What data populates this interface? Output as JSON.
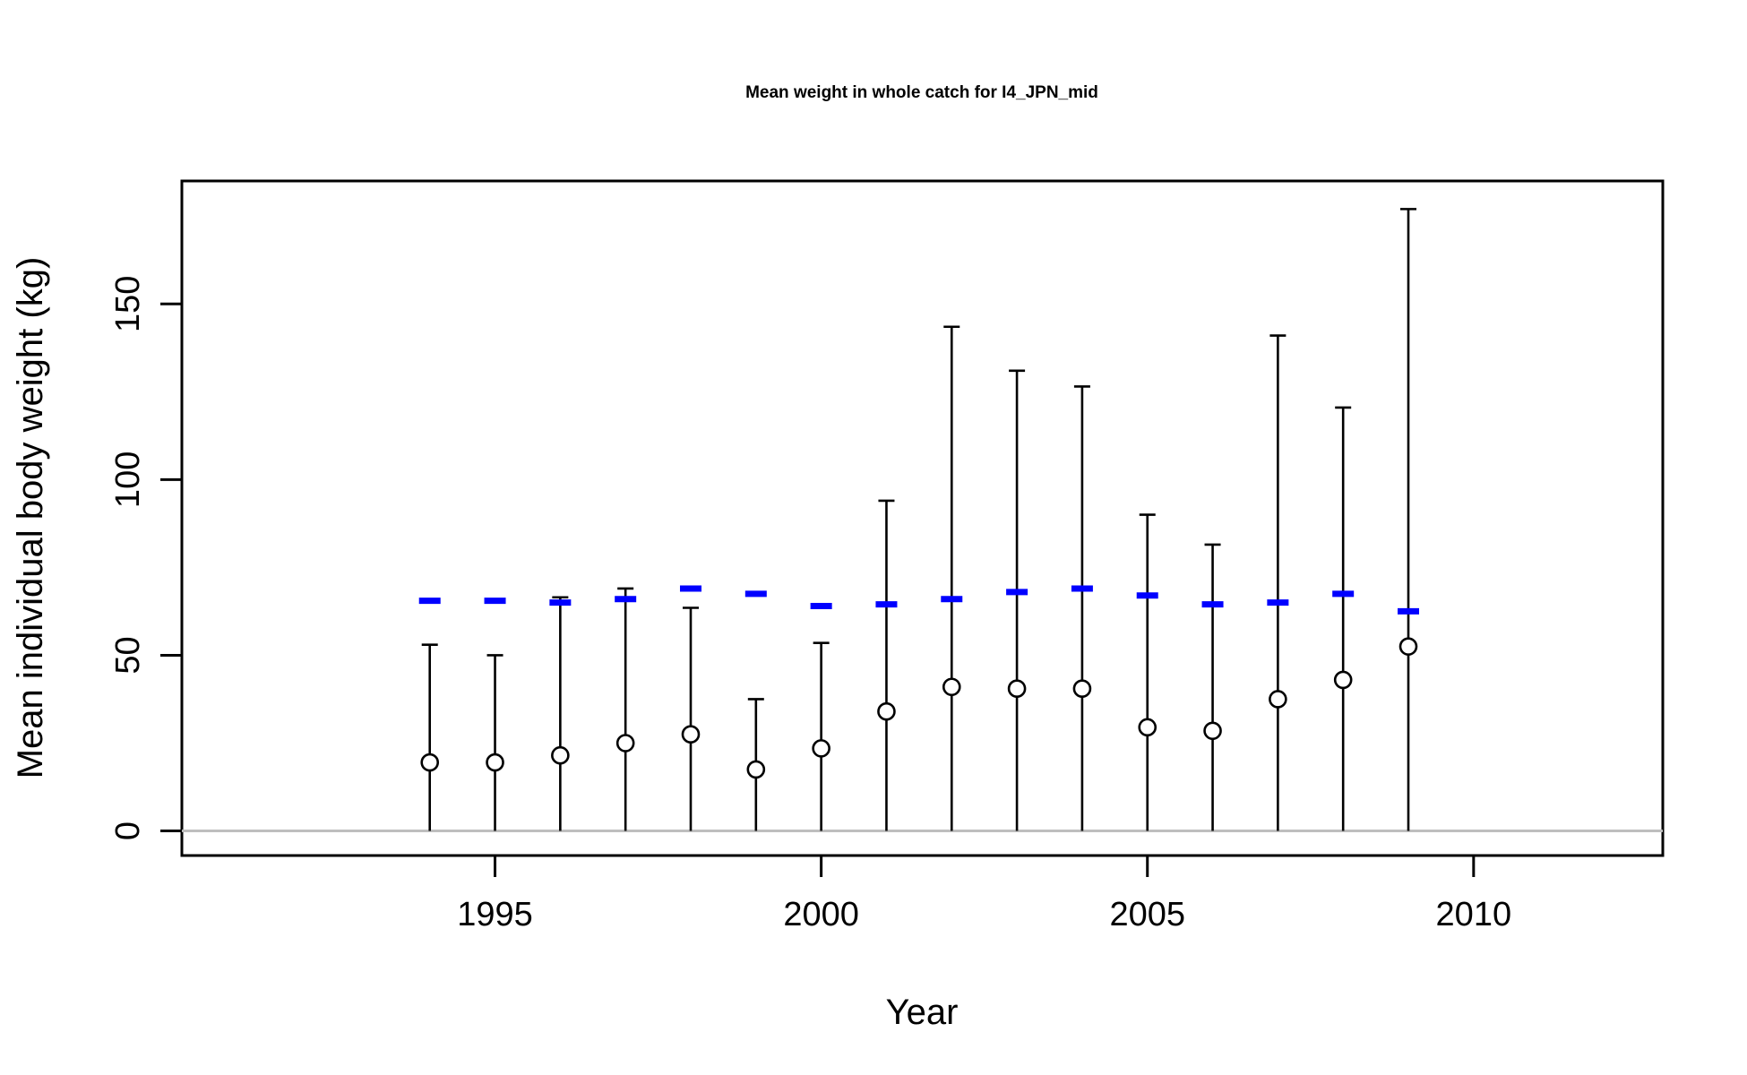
{
  "chart_data": {
    "type": "scatter",
    "title": "Mean weight in whole catch for I4_JPN_mid",
    "xlabel": "Year",
    "ylabel": "Mean individual body weight (kg)",
    "xlim": [
      1990.2,
      2012.9
    ],
    "ylim": [
      -7,
      185
    ],
    "x_ticks": [
      1995,
      2000,
      2005,
      2010
    ],
    "y_ticks": [
      0,
      50,
      100,
      150
    ],
    "grid": false,
    "reference_line": {
      "y": 0,
      "color": "#bebebe"
    },
    "series": [
      {
        "marker": "open-circle",
        "color": "#000000",
        "points": [
          {
            "x": 1994,
            "y": 19.5,
            "upper": 53
          },
          {
            "x": 1995,
            "y": 19.5,
            "upper": 50
          },
          {
            "x": 1996,
            "y": 21.5,
            "upper": 66.5
          },
          {
            "x": 1997,
            "y": 25,
            "upper": 69
          },
          {
            "x": 1998,
            "y": 27.5,
            "upper": 63.5
          },
          {
            "x": 1999,
            "y": 17.5,
            "upper": 37.5
          },
          {
            "x": 2000,
            "y": 23.5,
            "upper": 53.5
          },
          {
            "x": 2001,
            "y": 34,
            "upper": 94
          },
          {
            "x": 2002,
            "y": 41,
            "upper": 143.5
          },
          {
            "x": 2003,
            "y": 40.5,
            "upper": 131
          },
          {
            "x": 2004,
            "y": 40.5,
            "upper": 126.5
          },
          {
            "x": 2005,
            "y": 29.5,
            "upper": 90
          },
          {
            "x": 2006,
            "y": 28.5,
            "upper": 81.5
          },
          {
            "x": 2007,
            "y": 37.5,
            "upper": 141
          },
          {
            "x": 2008,
            "y": 43,
            "upper": 120.5
          },
          {
            "x": 2009,
            "y": 52.5,
            "upper": 177
          }
        ]
      },
      {
        "marker": "dash",
        "color": "#0000ff",
        "points": [
          {
            "x": 1994,
            "y": 65.5
          },
          {
            "x": 1995,
            "y": 65.5
          },
          {
            "x": 1996,
            "y": 65
          },
          {
            "x": 1997,
            "y": 66
          },
          {
            "x": 1998,
            "y": 69
          },
          {
            "x": 1999,
            "y": 67.5
          },
          {
            "x": 2000,
            "y": 64
          },
          {
            "x": 2001,
            "y": 64.5
          },
          {
            "x": 2002,
            "y": 66
          },
          {
            "x": 2003,
            "y": 68
          },
          {
            "x": 2004,
            "y": 69
          },
          {
            "x": 2005,
            "y": 67
          },
          {
            "x": 2006,
            "y": 64.5
          },
          {
            "x": 2007,
            "y": 65
          },
          {
            "x": 2008,
            "y": 67.5
          },
          {
            "x": 2009,
            "y": 62.5
          }
        ]
      }
    ]
  }
}
